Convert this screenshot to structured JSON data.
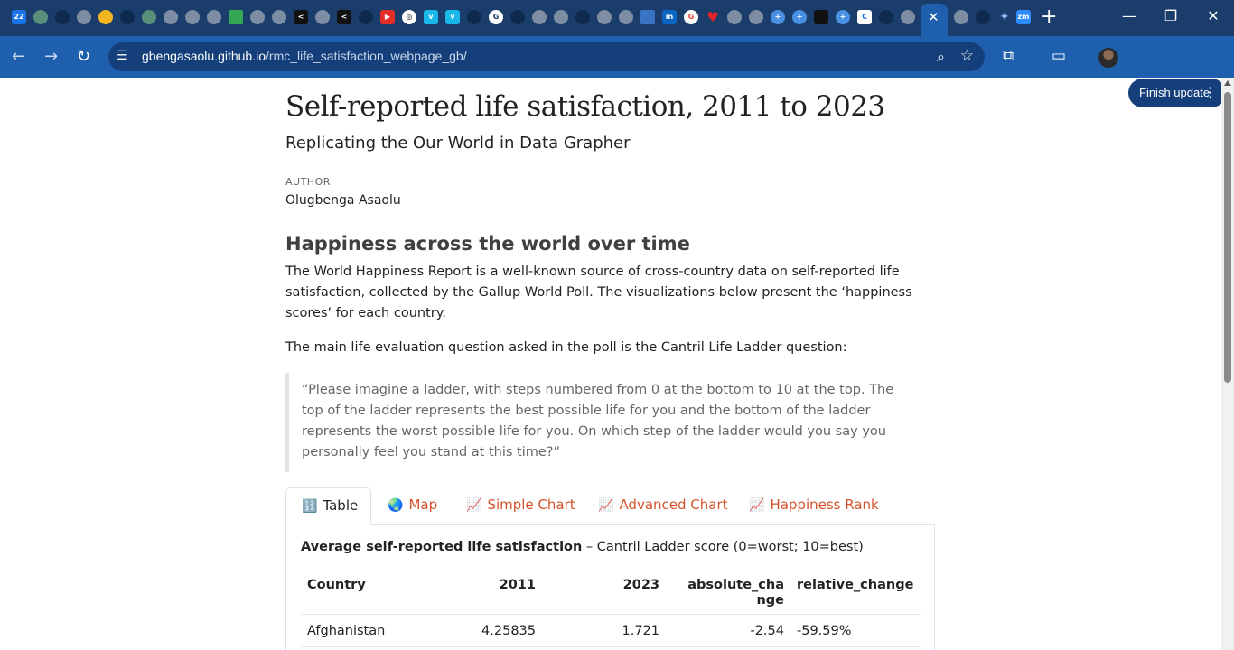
{
  "browser": {
    "url_domain": "gbengasaolu.github.io",
    "url_path": "/rmc_life_satisfaction_webpage_gb/",
    "finish_update_label": "Finish update"
  },
  "page": {
    "title": "Self-reported life satisfaction, 2011 to 2023",
    "subtitle": "Replicating the Our World in Data Grapher",
    "author_label": "AUTHOR",
    "author": "Olugbenga Asaolu",
    "section_heading": "Happiness across the world over time",
    "para1": "The World Happiness Report is a well-known source of cross-country data on self-reported life satisfaction, collected by the Gallup World Poll. The visualizations below present the ‘happiness scores’ for each country.",
    "para2": "The main life evaluation question asked in the poll is the Cantril Life Ladder question:",
    "quote": "“Please imagine a ladder, with steps numbered from 0 at the bottom to 10 at the top. The top of the ladder represents the best possible life for you and the bottom of the ladder represents the worst possible life for you. On which step of the ladder would you say you personally feel you stand at this time?”"
  },
  "tabs": [
    {
      "icon": "🔢",
      "label": "Table"
    },
    {
      "icon": "🌏",
      "label": "Map"
    },
    {
      "icon": "📈",
      "label": "Simple Chart"
    },
    {
      "icon": "📈",
      "label": "Advanced Chart"
    },
    {
      "icon": "📈",
      "label": "Happiness Rank"
    }
  ],
  "table": {
    "caption_bold": "Average self-reported life satisfaction",
    "caption_rest": " – Cantril Ladder score (0=worst; 10=best)",
    "headers": [
      "Country",
      "2011",
      "2023",
      "absolute_change",
      "relative_change"
    ],
    "rows": [
      [
        "Afghanistan",
        "4.25835",
        "1.721",
        "-2.54",
        "-59.59%"
      ]
    ]
  }
}
